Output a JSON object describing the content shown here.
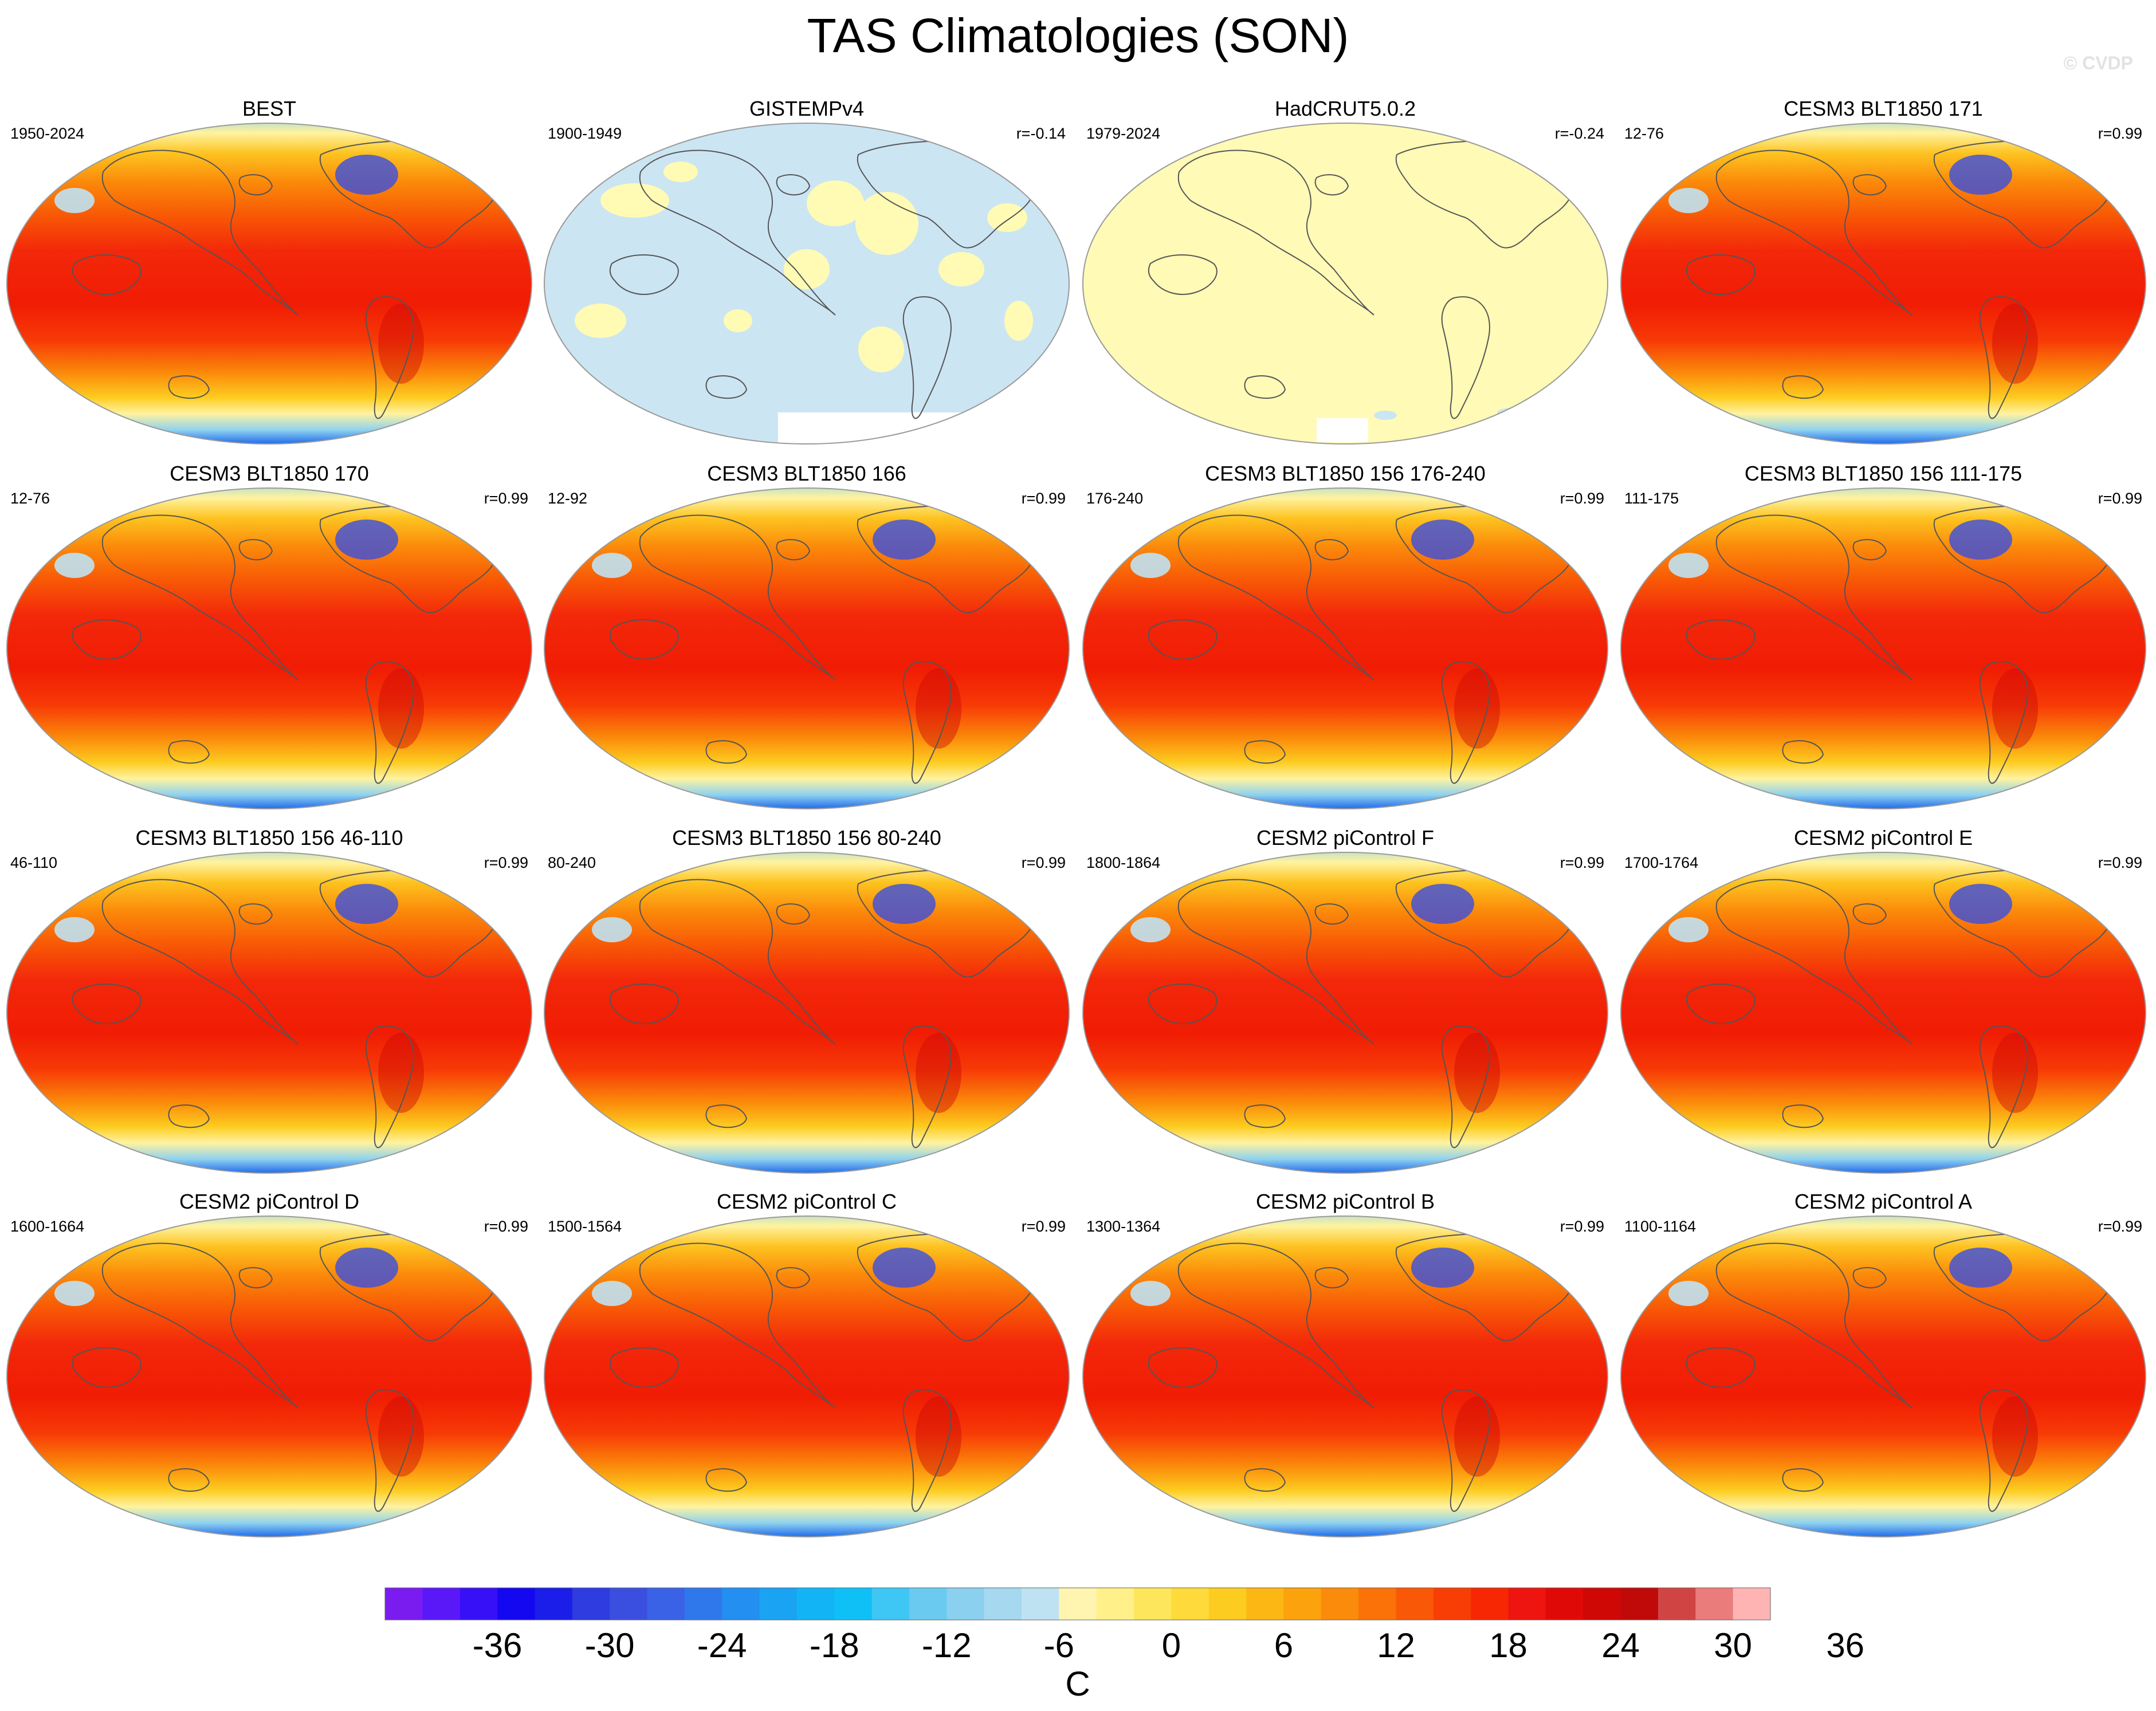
{
  "title": "TAS Climatologies (SON)",
  "watermark": "© CVDP",
  "panels": [
    {
      "title": "BEST",
      "period": "1950-2024",
      "corr": "",
      "style": "full"
    },
    {
      "title": "GISTEMPv4",
      "period": "1900-1949",
      "corr": "r=-0.14",
      "style": "gistemp"
    },
    {
      "title": "HadCRUT5.0.2",
      "period": "1979-2024",
      "corr": "r=-0.24",
      "style": "hadcrut"
    },
    {
      "title": "CESM3 BLT1850 171",
      "period": "12-76",
      "corr": "r=0.99",
      "style": "full"
    },
    {
      "title": "CESM3 BLT1850 170",
      "period": "12-76",
      "corr": "r=0.99",
      "style": "full"
    },
    {
      "title": "CESM3 BLT1850 166",
      "period": "12-92",
      "corr": "r=0.99",
      "style": "full"
    },
    {
      "title": "CESM3 BLT1850 156 176-240",
      "period": "176-240",
      "corr": "r=0.99",
      "style": "full"
    },
    {
      "title": "CESM3 BLT1850 156 111-175",
      "period": "111-175",
      "corr": "r=0.99",
      "style": "full"
    },
    {
      "title": "CESM3 BLT1850 156 46-110",
      "period": "46-110",
      "corr": "r=0.99",
      "style": "full"
    },
    {
      "title": "CESM3 BLT1850 156 80-240",
      "period": "80-240",
      "corr": "r=0.99",
      "style": "full"
    },
    {
      "title": "CESM2 piControl F",
      "period": "1800-1864",
      "corr": "r=0.99",
      "style": "full"
    },
    {
      "title": "CESM2 piControl E",
      "period": "1700-1764",
      "corr": "r=0.99",
      "style": "full"
    },
    {
      "title": "CESM2 piControl D",
      "period": "1600-1664",
      "corr": "r=0.99",
      "style": "full"
    },
    {
      "title": "CESM2 piControl C",
      "period": "1500-1564",
      "corr": "r=0.99",
      "style": "full"
    },
    {
      "title": "CESM2 piControl B",
      "period": "1300-1364",
      "corr": "r=0.99",
      "style": "full"
    },
    {
      "title": "CESM2 piControl A",
      "period": "1100-1164",
      "corr": "r=0.99",
      "style": "full"
    }
  ],
  "colorbar": {
    "unit": "C",
    "tick_labels": [
      "-36",
      "-30",
      "-24",
      "-18",
      "-12",
      "-6",
      "0",
      "6",
      "12",
      "18",
      "24",
      "30",
      "36"
    ],
    "colors": [
      "#7a1cf0",
      "#5a18f8",
      "#3810f8",
      "#1408f0",
      "#1a1ee8",
      "#2e3ce0",
      "#3a4fe0",
      "#3a62e6",
      "#2f78ec",
      "#238ff0",
      "#1aa3f3",
      "#12b4f5",
      "#0fc0f6",
      "#3ec6f4",
      "#6bcaf0",
      "#8bd0ee",
      "#a6d8f0",
      "#bfe2f3",
      "#fff5b0",
      "#fff08a",
      "#fee65c",
      "#fedb3a",
      "#fdcc20",
      "#fdb714",
      "#fca20c",
      "#fb8b0a",
      "#fa7208",
      "#f95806",
      "#f83e04",
      "#f62702",
      "#ee1410",
      "#df0a08",
      "#cf0806",
      "#c00a0a",
      "#d04444",
      "#ea7c7c",
      "#ffb4b4"
    ]
  },
  "palette": {
    "land_outline": "#555555",
    "gistemp_blue": "#cce5f3",
    "pale_yellow": "#fffbb4",
    "hadcrut_yellow": "#fffab6",
    "ocean_red": "#f01c04",
    "polar_purple": "#8a2cf2"
  }
}
